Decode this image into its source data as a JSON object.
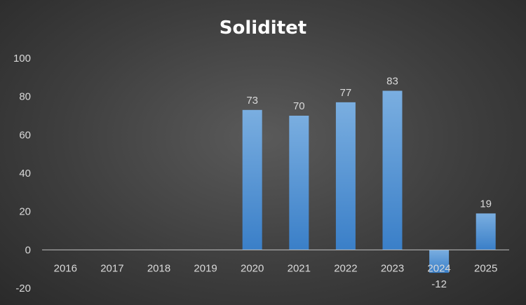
{
  "chart_data": {
    "type": "bar",
    "title": "Soliditet",
    "categories": [
      "2016",
      "2017",
      "2018",
      "2019",
      "2020",
      "2021",
      "2022",
      "2023",
      "2024",
      "2025"
    ],
    "values": [
      null,
      null,
      null,
      null,
      73,
      70,
      77,
      83,
      -12,
      19
    ],
    "data_labels": [
      "",
      "",
      "",
      "",
      "73",
      "70",
      "77",
      "83",
      "-12",
      "19"
    ],
    "y_ticks": [
      "-20",
      "0",
      "20",
      "40",
      "60",
      "80",
      "100"
    ],
    "ylim": [
      -20,
      100
    ],
    "xlabel": "",
    "ylabel": "",
    "grid": false,
    "legend": "none",
    "colors": {
      "bar_top": "#7aaee0",
      "bar_bottom": "#3a7fc8",
      "axis": "#bfbfbf"
    }
  }
}
